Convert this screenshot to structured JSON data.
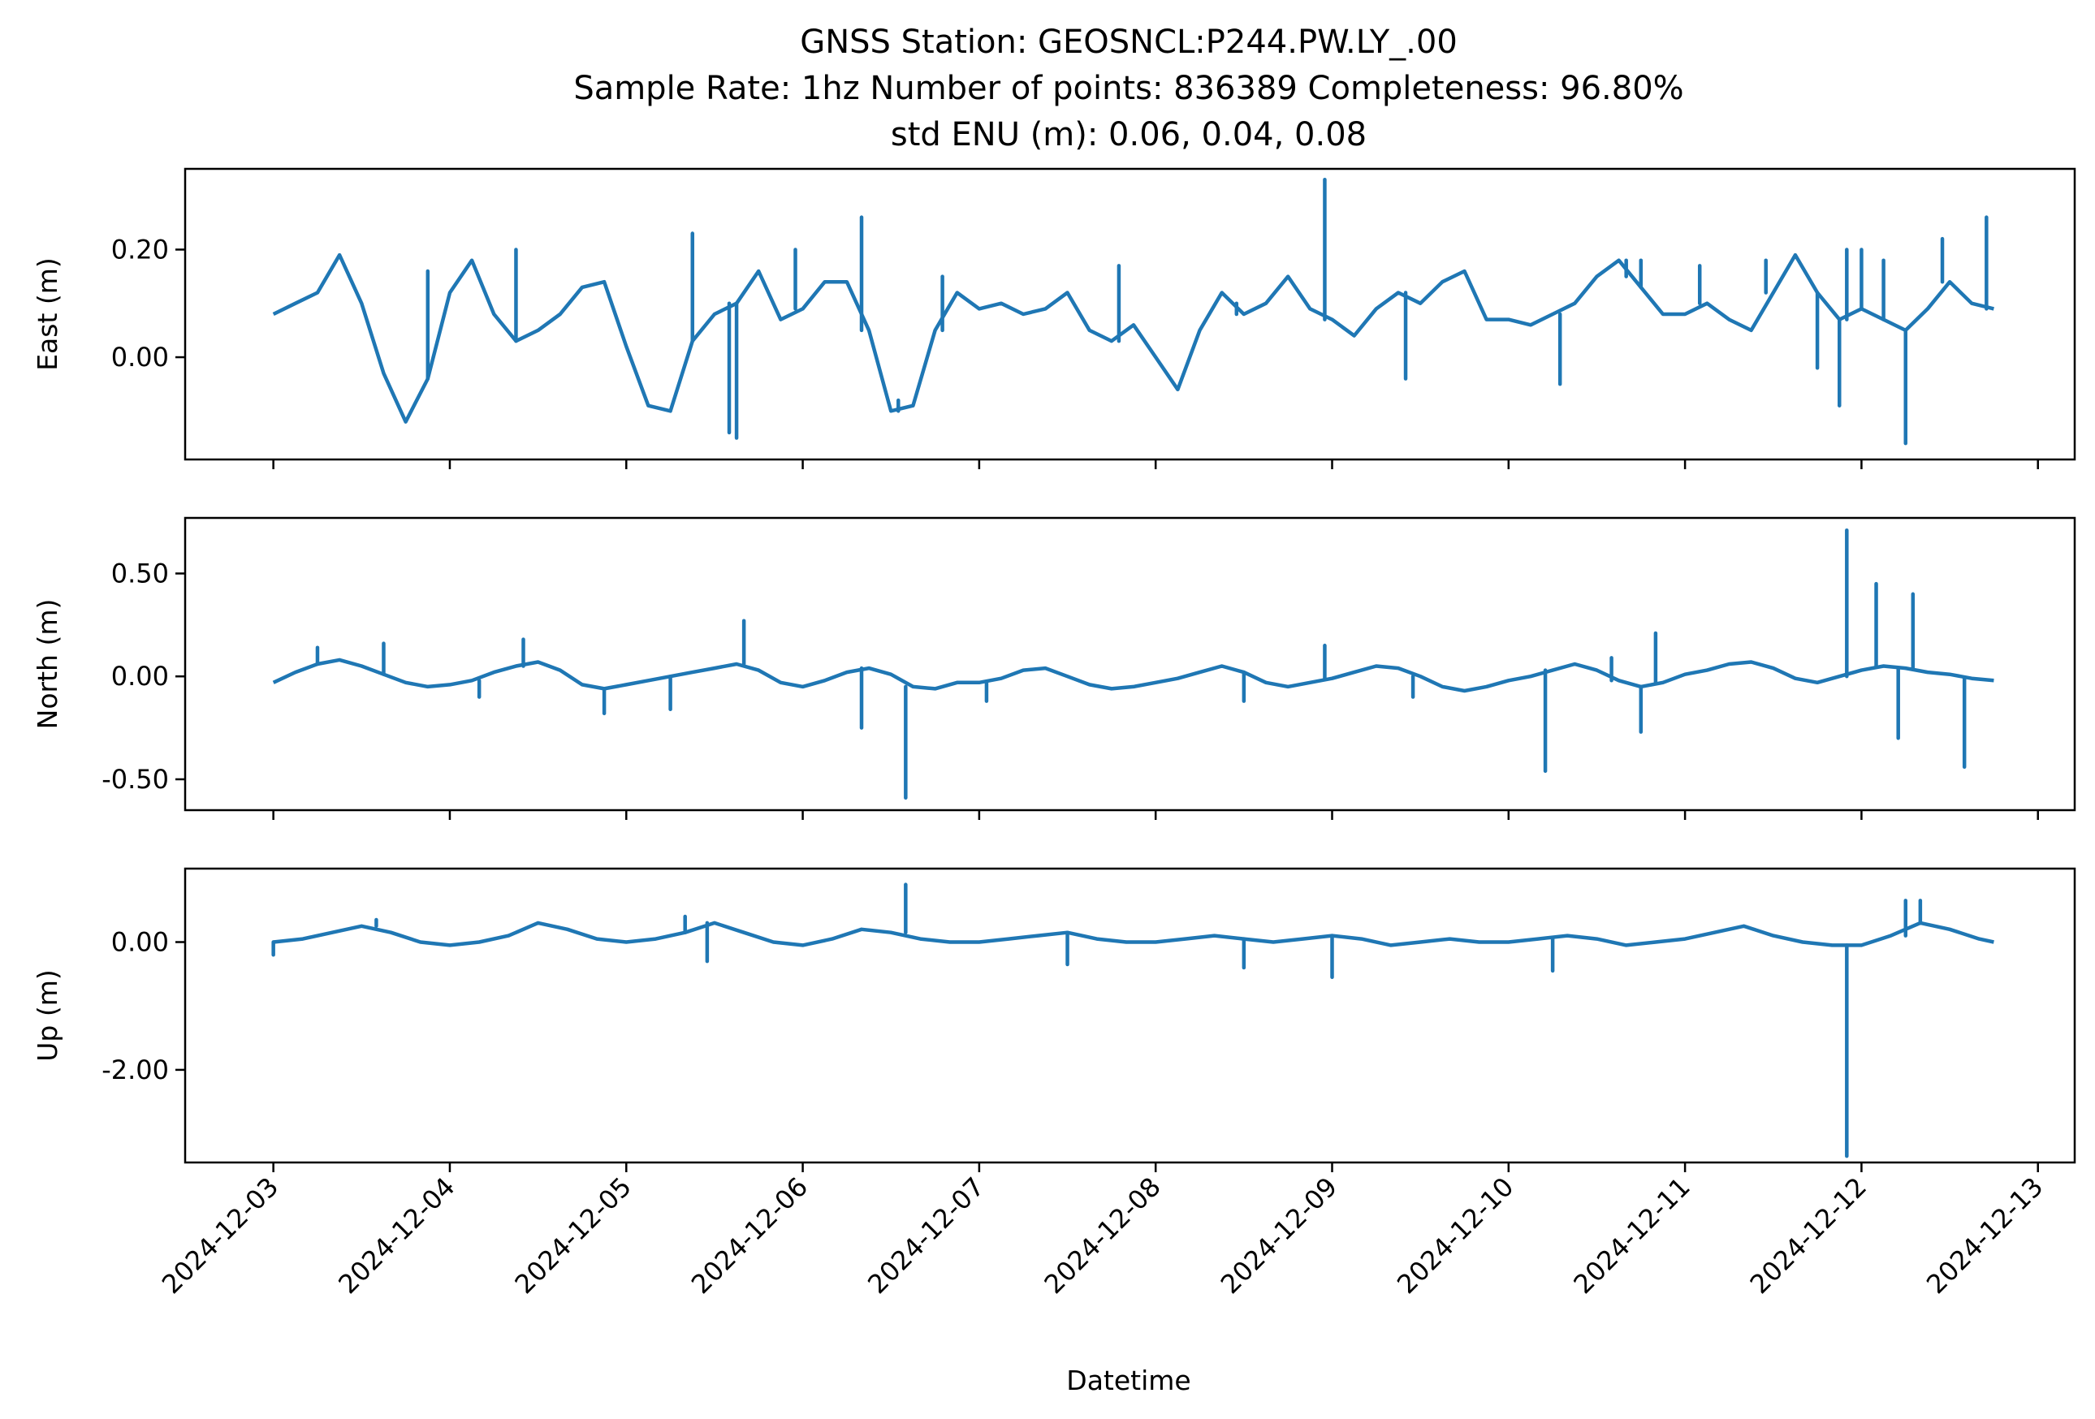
{
  "figure": {
    "title_lines": [
      "GNSS Station: GEOSNCL:P244.PW.LY_.00",
      "Sample Rate: 1hz   Number of points: 836389    Completeness:  96.80%",
      "std ENU (m):  0.06, 0.04, 0.08"
    ],
    "xlabel": "Datetime",
    "line_color": "#1f77b4"
  },
  "chart_data": [
    {
      "type": "line",
      "panel": "east",
      "ylabel": "East (m)",
      "yticks": [
        "0.20",
        "0.00"
      ],
      "ylim": [
        -0.19,
        0.35
      ],
      "xlim": [
        "2024-12-02T12:00",
        "2024-12-13T05:00"
      ],
      "xticks": [
        "2024-12-03",
        "2024-12-04",
        "2024-12-05",
        "2024-12-06",
        "2024-12-07",
        "2024-12-08",
        "2024-12-09",
        "2024-12-10",
        "2024-12-11",
        "2024-12-12",
        "2024-12-13"
      ],
      "show_xtick_labels": false,
      "series": [
        {
          "x": [
            "2024-12-03T00:00",
            "2024-12-03T03:00",
            "2024-12-03T06:00",
            "2024-12-03T09:00",
            "2024-12-03T12:00",
            "2024-12-03T15:00",
            "2024-12-03T18:00",
            "2024-12-03T21:00",
            "2024-12-04T00:00",
            "2024-12-04T03:00",
            "2024-12-04T06:00",
            "2024-12-04T09:00",
            "2024-12-04T12:00",
            "2024-12-04T15:00",
            "2024-12-04T18:00",
            "2024-12-04T21:00",
            "2024-12-05T00:00",
            "2024-12-05T03:00",
            "2024-12-05T06:00",
            "2024-12-05T09:00",
            "2024-12-05T12:00",
            "2024-12-05T15:00",
            "2024-12-05T18:00",
            "2024-12-05T21:00",
            "2024-12-06T00:00",
            "2024-12-06T03:00",
            "2024-12-06T06:00",
            "2024-12-06T09:00",
            "2024-12-06T12:00",
            "2024-12-06T15:00",
            "2024-12-06T18:00",
            "2024-12-06T21:00",
            "2024-12-07T00:00",
            "2024-12-07T03:00",
            "2024-12-07T06:00",
            "2024-12-07T09:00",
            "2024-12-07T12:00",
            "2024-12-07T15:00",
            "2024-12-07T18:00",
            "2024-12-07T21:00",
            "2024-12-08T00:00",
            "2024-12-08T03:00",
            "2024-12-08T06:00",
            "2024-12-08T09:00",
            "2024-12-08T12:00",
            "2024-12-08T15:00",
            "2024-12-08T18:00",
            "2024-12-08T21:00",
            "2024-12-09T00:00",
            "2024-12-09T03:00",
            "2024-12-09T06:00",
            "2024-12-09T09:00",
            "2024-12-09T12:00",
            "2024-12-09T15:00",
            "2024-12-09T18:00",
            "2024-12-09T21:00",
            "2024-12-10T00:00",
            "2024-12-10T03:00",
            "2024-12-10T06:00",
            "2024-12-10T09:00",
            "2024-12-10T12:00",
            "2024-12-10T15:00",
            "2024-12-10T18:00",
            "2024-12-10T21:00",
            "2024-12-11T00:00",
            "2024-12-11T03:00",
            "2024-12-11T06:00",
            "2024-12-11T09:00",
            "2024-12-11T12:00",
            "2024-12-11T15:00",
            "2024-12-11T18:00",
            "2024-12-11T21:00",
            "2024-12-12T00:00",
            "2024-12-12T03:00",
            "2024-12-12T06:00",
            "2024-12-12T09:00",
            "2024-12-12T12:00",
            "2024-12-12T15:00",
            "2024-12-12T18:00"
          ],
          "y": [
            0.08,
            0.1,
            0.12,
            0.19,
            0.1,
            -0.03,
            -0.12,
            -0.04,
            0.12,
            0.18,
            0.08,
            0.03,
            0.05,
            0.08,
            0.13,
            0.14,
            0.02,
            -0.09,
            -0.1,
            0.03,
            0.08,
            0.1,
            0.16,
            0.07,
            0.09,
            0.14,
            0.14,
            0.05,
            -0.1,
            -0.09,
            0.05,
            0.12,
            0.09,
            0.1,
            0.08,
            0.09,
            0.12,
            0.05,
            0.03,
            0.06,
            0.0,
            -0.06,
            0.05,
            0.12,
            0.08,
            0.1,
            0.15,
            0.09,
            0.07,
            0.04,
            0.09,
            0.12,
            0.1,
            0.14,
            0.16,
            0.07,
            0.07,
            0.06,
            0.08,
            0.1,
            0.15,
            0.18,
            0.13,
            0.08,
            0.08,
            0.1,
            0.07,
            0.05,
            0.12,
            0.19,
            0.12,
            0.07,
            0.09,
            0.07,
            0.05,
            0.09,
            0.14,
            0.1,
            0.09
          ]
        }
      ],
      "spikes": [
        {
          "x": "2024-12-03T21:00",
          "y": 0.16
        },
        {
          "x": "2024-12-04T09:00",
          "y": 0.2
        },
        {
          "x": "2024-12-05T09:00",
          "y": 0.23
        },
        {
          "x": "2024-12-05T14:00",
          "y": -0.14
        },
        {
          "x": "2024-12-05T15:00",
          "y": -0.15
        },
        {
          "x": "2024-12-05T23:00",
          "y": 0.2
        },
        {
          "x": "2024-12-06T08:00",
          "y": 0.26
        },
        {
          "x": "2024-12-06T13:00",
          "y": -0.08
        },
        {
          "x": "2024-12-06T19:00",
          "y": 0.15
        },
        {
          "x": "2024-12-07T19:00",
          "y": 0.17
        },
        {
          "x": "2024-12-08T11:00",
          "y": 0.1
        },
        {
          "x": "2024-12-08T23:00",
          "y": 0.33
        },
        {
          "x": "2024-12-09T10:00",
          "y": -0.04
        },
        {
          "x": "2024-12-10T07:00",
          "y": -0.05
        },
        {
          "x": "2024-12-10T16:00",
          "y": 0.15
        },
        {
          "x": "2024-12-10T18:00",
          "y": 0.18
        },
        {
          "x": "2024-12-11T02:00",
          "y": 0.17
        },
        {
          "x": "2024-12-11T11:00",
          "y": 0.18
        },
        {
          "x": "2024-12-11T18:00",
          "y": -0.02
        },
        {
          "x": "2024-12-11T21:00",
          "y": -0.09
        },
        {
          "x": "2024-12-11T22:00",
          "y": 0.2
        },
        {
          "x": "2024-12-12T00:00",
          "y": 0.2
        },
        {
          "x": "2024-12-12T03:00",
          "y": 0.18
        },
        {
          "x": "2024-12-12T06:00",
          "y": -0.16
        },
        {
          "x": "2024-12-12T11:00",
          "y": 0.22
        },
        {
          "x": "2024-12-12T17:00",
          "y": 0.26
        }
      ]
    },
    {
      "type": "line",
      "panel": "north",
      "ylabel": "North (m)",
      "yticks": [
        "0.50",
        "0.00",
        "-0.50"
      ],
      "ylim": [
        -0.65,
        0.77
      ],
      "xlim": [
        "2024-12-02T12:00",
        "2024-12-13T05:00"
      ],
      "xticks": [
        "2024-12-03",
        "2024-12-04",
        "2024-12-05",
        "2024-12-06",
        "2024-12-07",
        "2024-12-08",
        "2024-12-09",
        "2024-12-10",
        "2024-12-11",
        "2024-12-12",
        "2024-12-13"
      ],
      "show_xtick_labels": false,
      "series": [
        {
          "x": [
            "2024-12-03T00:00",
            "2024-12-03T03:00",
            "2024-12-03T06:00",
            "2024-12-03T09:00",
            "2024-12-03T12:00",
            "2024-12-03T15:00",
            "2024-12-03T18:00",
            "2024-12-03T21:00",
            "2024-12-04T00:00",
            "2024-12-04T03:00",
            "2024-12-04T06:00",
            "2024-12-04T09:00",
            "2024-12-04T12:00",
            "2024-12-04T15:00",
            "2024-12-04T18:00",
            "2024-12-04T21:00",
            "2024-12-05T00:00",
            "2024-12-05T03:00",
            "2024-12-05T06:00",
            "2024-12-05T09:00",
            "2024-12-05T12:00",
            "2024-12-05T15:00",
            "2024-12-05T18:00",
            "2024-12-05T21:00",
            "2024-12-06T00:00",
            "2024-12-06T03:00",
            "2024-12-06T06:00",
            "2024-12-06T09:00",
            "2024-12-06T12:00",
            "2024-12-06T15:00",
            "2024-12-06T18:00",
            "2024-12-06T21:00",
            "2024-12-07T00:00",
            "2024-12-07T03:00",
            "2024-12-07T06:00",
            "2024-12-07T09:00",
            "2024-12-07T12:00",
            "2024-12-07T15:00",
            "2024-12-07T18:00",
            "2024-12-07T21:00",
            "2024-12-08T00:00",
            "2024-12-08T03:00",
            "2024-12-08T06:00",
            "2024-12-08T09:00",
            "2024-12-08T12:00",
            "2024-12-08T15:00",
            "2024-12-08T18:00",
            "2024-12-08T21:00",
            "2024-12-09T00:00",
            "2024-12-09T03:00",
            "2024-12-09T06:00",
            "2024-12-09T09:00",
            "2024-12-09T12:00",
            "2024-12-09T15:00",
            "2024-12-09T18:00",
            "2024-12-09T21:00",
            "2024-12-10T00:00",
            "2024-12-10T03:00",
            "2024-12-10T06:00",
            "2024-12-10T09:00",
            "2024-12-10T12:00",
            "2024-12-10T15:00",
            "2024-12-10T18:00",
            "2024-12-10T21:00",
            "2024-12-11T00:00",
            "2024-12-11T03:00",
            "2024-12-11T06:00",
            "2024-12-11T09:00",
            "2024-12-11T12:00",
            "2024-12-11T15:00",
            "2024-12-11T18:00",
            "2024-12-11T21:00",
            "2024-12-12T00:00",
            "2024-12-12T03:00",
            "2024-12-12T06:00",
            "2024-12-12T09:00",
            "2024-12-12T12:00",
            "2024-12-12T15:00",
            "2024-12-12T18:00"
          ],
          "y": [
            -0.03,
            0.02,
            0.06,
            0.08,
            0.05,
            0.01,
            -0.03,
            -0.05,
            -0.04,
            -0.02,
            0.02,
            0.05,
            0.07,
            0.03,
            -0.04,
            -0.06,
            -0.04,
            -0.02,
            0.0,
            0.02,
            0.04,
            0.06,
            0.03,
            -0.03,
            -0.05,
            -0.02,
            0.02,
            0.04,
            0.01,
            -0.05,
            -0.06,
            -0.03,
            -0.03,
            -0.01,
            0.03,
            0.04,
            0.0,
            -0.04,
            -0.06,
            -0.05,
            -0.03,
            -0.01,
            0.02,
            0.05,
            0.02,
            -0.03,
            -0.05,
            -0.03,
            -0.01,
            0.02,
            0.05,
            0.04,
            0.0,
            -0.05,
            -0.07,
            -0.05,
            -0.02,
            0.0,
            0.03,
            0.06,
            0.03,
            -0.02,
            -0.05,
            -0.03,
            0.01,
            0.03,
            0.06,
            0.07,
            0.04,
            -0.01,
            -0.03,
            0.0,
            0.03,
            0.05,
            0.04,
            0.02,
            0.01,
            -0.01,
            -0.02
          ]
        }
      ],
      "spikes": [
        {
          "x": "2024-12-03T06:00",
          "y": 0.14
        },
        {
          "x": "2024-12-03T15:00",
          "y": 0.16
        },
        {
          "x": "2024-12-04T04:00",
          "y": -0.1
        },
        {
          "x": "2024-12-04T10:00",
          "y": 0.18
        },
        {
          "x": "2024-12-04T21:00",
          "y": -0.18
        },
        {
          "x": "2024-12-05T06:00",
          "y": -0.16
        },
        {
          "x": "2024-12-05T16:00",
          "y": 0.27
        },
        {
          "x": "2024-12-06T08:00",
          "y": -0.25
        },
        {
          "x": "2024-12-06T14:00",
          "y": -0.59
        },
        {
          "x": "2024-12-07T01:00",
          "y": -0.12
        },
        {
          "x": "2024-12-08T12:00",
          "y": -0.12
        },
        {
          "x": "2024-12-08T23:00",
          "y": 0.15
        },
        {
          "x": "2024-12-09T11:00",
          "y": -0.1
        },
        {
          "x": "2024-12-10T05:00",
          "y": -0.46
        },
        {
          "x": "2024-12-10T14:00",
          "y": 0.09
        },
        {
          "x": "2024-12-10T18:00",
          "y": -0.27
        },
        {
          "x": "2024-12-10T20:00",
          "y": 0.21
        },
        {
          "x": "2024-12-11T22:00",
          "y": 0.71
        },
        {
          "x": "2024-12-12T02:00",
          "y": 0.45
        },
        {
          "x": "2024-12-12T05:00",
          "y": -0.3
        },
        {
          "x": "2024-12-12T07:00",
          "y": 0.4
        },
        {
          "x": "2024-12-12T14:00",
          "y": -0.44
        }
      ]
    },
    {
      "type": "line",
      "panel": "up",
      "ylabel": "Up (m)",
      "yticks": [
        "0.00",
        "-2.00"
      ],
      "ylim": [
        -3.45,
        1.15
      ],
      "xlim": [
        "2024-12-02T12:00",
        "2024-12-13T05:00"
      ],
      "xticks": [
        "2024-12-03",
        "2024-12-04",
        "2024-12-05",
        "2024-12-06",
        "2024-12-07",
        "2024-12-08",
        "2024-12-09",
        "2024-12-10",
        "2024-12-11",
        "2024-12-12",
        "2024-12-13"
      ],
      "show_xtick_labels": true,
      "series": [
        {
          "x": [
            "2024-12-03T00:00",
            "2024-12-03T04:00",
            "2024-12-03T08:00",
            "2024-12-03T12:00",
            "2024-12-03T16:00",
            "2024-12-03T20:00",
            "2024-12-04T00:00",
            "2024-12-04T04:00",
            "2024-12-04T08:00",
            "2024-12-04T12:00",
            "2024-12-04T16:00",
            "2024-12-04T20:00",
            "2024-12-05T00:00",
            "2024-12-05T04:00",
            "2024-12-05T08:00",
            "2024-12-05T12:00",
            "2024-12-05T16:00",
            "2024-12-05T20:00",
            "2024-12-06T00:00",
            "2024-12-06T04:00",
            "2024-12-06T08:00",
            "2024-12-06T12:00",
            "2024-12-06T16:00",
            "2024-12-06T20:00",
            "2024-12-07T00:00",
            "2024-12-07T04:00",
            "2024-12-07T08:00",
            "2024-12-07T12:00",
            "2024-12-07T16:00",
            "2024-12-07T20:00",
            "2024-12-08T00:00",
            "2024-12-08T04:00",
            "2024-12-08T08:00",
            "2024-12-08T12:00",
            "2024-12-08T16:00",
            "2024-12-08T20:00",
            "2024-12-09T00:00",
            "2024-12-09T04:00",
            "2024-12-09T08:00",
            "2024-12-09T12:00",
            "2024-12-09T16:00",
            "2024-12-09T20:00",
            "2024-12-10T00:00",
            "2024-12-10T04:00",
            "2024-12-10T08:00",
            "2024-12-10T12:00",
            "2024-12-10T16:00",
            "2024-12-10T20:00",
            "2024-12-11T00:00",
            "2024-12-11T04:00",
            "2024-12-11T08:00",
            "2024-12-11T12:00",
            "2024-12-11T16:00",
            "2024-12-11T20:00",
            "2024-12-12T00:00",
            "2024-12-12T04:00",
            "2024-12-12T08:00",
            "2024-12-12T12:00",
            "2024-12-12T16:00",
            "2024-12-12T18:00"
          ],
          "y": [
            0.0,
            0.05,
            0.15,
            0.25,
            0.15,
            0.0,
            -0.05,
            0.0,
            0.1,
            0.3,
            0.2,
            0.05,
            0.0,
            0.05,
            0.15,
            0.3,
            0.15,
            0.0,
            -0.05,
            0.05,
            0.2,
            0.15,
            0.05,
            0.0,
            0.0,
            0.05,
            0.1,
            0.15,
            0.05,
            0.0,
            0.0,
            0.05,
            0.1,
            0.05,
            0.0,
            0.05,
            0.1,
            0.05,
            -0.05,
            0.0,
            0.05,
            0.0,
            0.0,
            0.05,
            0.1,
            0.05,
            -0.05,
            0.0,
            0.05,
            0.15,
            0.25,
            0.1,
            0.0,
            -0.05,
            -0.05,
            0.1,
            0.3,
            0.2,
            0.05,
            0.0
          ]
        }
      ],
      "spikes": [
        {
          "x": "2024-12-03T00:00",
          "y": -0.2
        },
        {
          "x": "2024-12-03T14:00",
          "y": 0.35
        },
        {
          "x": "2024-12-05T08:00",
          "y": 0.4
        },
        {
          "x": "2024-12-05T11:00",
          "y": -0.3
        },
        {
          "x": "2024-12-06T14:00",
          "y": 0.9
        },
        {
          "x": "2024-12-07T12:00",
          "y": -0.35
        },
        {
          "x": "2024-12-08T12:00",
          "y": -0.4
        },
        {
          "x": "2024-12-09T00:00",
          "y": -0.55
        },
        {
          "x": "2024-12-10T06:00",
          "y": -0.45
        },
        {
          "x": "2024-12-11T22:00",
          "y": -3.35
        },
        {
          "x": "2024-12-12T06:00",
          "y": 0.65
        },
        {
          "x": "2024-12-12T08:00",
          "y": 0.65
        }
      ]
    }
  ]
}
